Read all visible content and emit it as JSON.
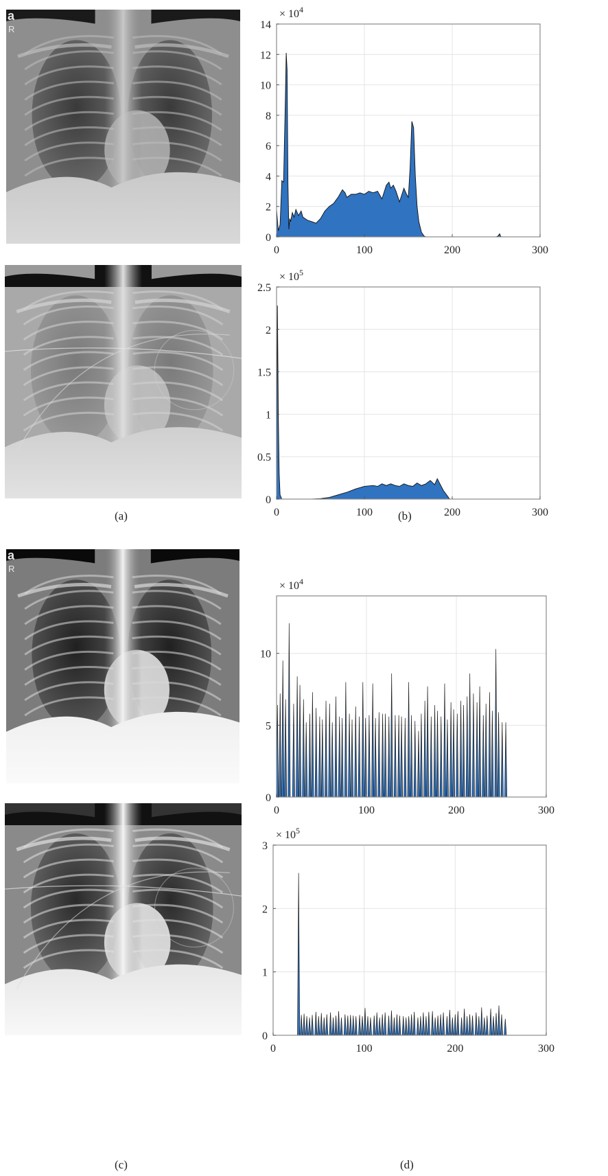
{
  "figure": {
    "captions": [
      "(a)",
      "(b)",
      "(c)",
      "(d)"
    ],
    "xray_images": [
      {
        "name": "xray-original-1",
        "corner_letter": "a",
        "corner_sub": "R"
      },
      {
        "name": "xray-original-2",
        "corner_letter": "",
        "corner_sub": ""
      },
      {
        "name": "xray-equalized-1",
        "corner_letter": "a",
        "corner_sub": "R"
      },
      {
        "name": "xray-equalized-2",
        "corner_letter": "",
        "corner_sub": ""
      }
    ],
    "colors": {
      "fill": "#2f73c1",
      "stroke": "#111111",
      "grid": "#e4e4e4",
      "axes": "#8a8a8a"
    }
  },
  "chart_data": [
    {
      "type": "area",
      "title": "",
      "xlabel": "",
      "ylabel": "",
      "multiplier": "× 10",
      "exponent": "4",
      "xlim": [
        0,
        300
      ],
      "ylim": [
        0,
        14
      ],
      "xticks": [
        0,
        100,
        200,
        300
      ],
      "yticks": [
        0,
        2,
        4,
        6,
        8,
        10,
        12,
        14
      ],
      "grid": true,
      "x": [
        0,
        2,
        4,
        6,
        8,
        10,
        11,
        12,
        13,
        14,
        15,
        16,
        18,
        20,
        22,
        25,
        28,
        30,
        35,
        40,
        45,
        50,
        55,
        60,
        65,
        70,
        75,
        78,
        80,
        85,
        90,
        95,
        100,
        105,
        110,
        115,
        120,
        125,
        128,
        130,
        133,
        136,
        140,
        145,
        148,
        150,
        152,
        154,
        156,
        158,
        160,
        162,
        165,
        168,
        170,
        200,
        250,
        252,
        254,
        255,
        256
      ],
      "y": [
        1.8,
        0.4,
        0.8,
        3.7,
        3.6,
        9.0,
        12.1,
        11.0,
        3.5,
        0.5,
        1.2,
        1.0,
        1.6,
        1.3,
        1.8,
        1.4,
        1.7,
        1.3,
        1.1,
        1.0,
        0.9,
        1.2,
        1.7,
        2.0,
        2.2,
        2.6,
        3.1,
        2.9,
        2.6,
        2.8,
        2.8,
        2.9,
        2.8,
        3.0,
        2.9,
        3.0,
        2.5,
        3.4,
        3.6,
        3.2,
        3.4,
        3.0,
        2.3,
        3.2,
        2.8,
        2.6,
        4.5,
        7.6,
        7.2,
        4.0,
        2.0,
        1.0,
        0.3,
        0.05,
        0.0,
        0.0,
        0.0,
        0.05,
        0.2,
        0.05,
        0.0
      ]
    },
    {
      "type": "area",
      "title": "",
      "xlabel": "",
      "ylabel": "",
      "multiplier": "× 10",
      "exponent": "5",
      "xlim": [
        0,
        300
      ],
      "ylim": [
        0,
        2.5
      ],
      "xticks": [
        0,
        100,
        200,
        300
      ],
      "yticks": [
        0,
        0.5,
        1,
        1.5,
        2,
        2.5
      ],
      "grid": true,
      "x": [
        0,
        1,
        2,
        3,
        4,
        6,
        10,
        20,
        30,
        40,
        50,
        60,
        70,
        80,
        90,
        100,
        110,
        115,
        120,
        125,
        130,
        135,
        140,
        145,
        150,
        155,
        160,
        165,
        170,
        175,
        180,
        183,
        185,
        190,
        195,
        197,
        200,
        250,
        256
      ],
      "y": [
        0.0,
        2.28,
        1.0,
        0.3,
        0.05,
        0.0,
        0.0,
        0.0,
        0.0,
        0.0,
        0.005,
        0.02,
        0.05,
        0.08,
        0.12,
        0.15,
        0.16,
        0.15,
        0.18,
        0.16,
        0.18,
        0.16,
        0.15,
        0.18,
        0.16,
        0.15,
        0.19,
        0.16,
        0.18,
        0.22,
        0.17,
        0.24,
        0.2,
        0.1,
        0.03,
        0.0,
        0.0,
        0.0,
        0.0
      ]
    },
    {
      "type": "bar",
      "title": "",
      "xlabel": "",
      "ylabel": "",
      "multiplier": "× 10",
      "exponent": "4",
      "xlim": [
        0,
        300
      ],
      "ylim": [
        0,
        14
      ],
      "xticks": [
        0,
        100,
        200,
        300
      ],
      "yticks": [
        0,
        5,
        10
      ],
      "grid": true,
      "x": [
        1,
        4,
        7,
        10,
        14,
        19,
        23,
        26,
        30,
        33,
        37,
        40,
        44,
        48,
        51,
        55,
        59,
        62,
        66,
        70,
        73,
        77,
        81,
        84,
        88,
        92,
        96,
        99,
        103,
        107,
        110,
        114,
        118,
        121,
        125,
        128,
        132,
        136,
        139,
        143,
        147,
        150,
        154,
        158,
        161,
        165,
        168,
        172,
        176,
        179,
        183,
        187,
        190,
        194,
        197,
        201,
        205,
        208,
        212,
        215,
        219,
        223,
        226,
        230,
        233,
        237,
        240,
        244,
        247,
        251,
        255
      ],
      "y": [
        6.4,
        7.2,
        9.5,
        6.8,
        12.1,
        6.5,
        8.4,
        7.8,
        6.8,
        5.2,
        5.8,
        7.3,
        6.2,
        5.6,
        5.4,
        6.7,
        6.5,
        5.2,
        7.0,
        5.6,
        5.5,
        8.0,
        5.8,
        5.4,
        6.3,
        5.6,
        8.0,
        5.5,
        5.7,
        7.9,
        5.5,
        5.9,
        5.8,
        5.8,
        5.6,
        8.6,
        5.7,
        5.7,
        5.6,
        5.5,
        8.0,
        5.7,
        5.3,
        4.6,
        5.8,
        6.7,
        7.7,
        5.6,
        6.4,
        6.0,
        5.6,
        7.9,
        5.4,
        6.6,
        6.1,
        5.8,
        6.7,
        6.4,
        7.0,
        8.6,
        7.2,
        6.6,
        7.7,
        5.7,
        6.5,
        7.3,
        6.0,
        10.3,
        5.9,
        5.2,
        5.2
      ]
    },
    {
      "type": "bar",
      "title": "",
      "xlabel": "",
      "ylabel": "",
      "multiplier": "× 10",
      "exponent": "5",
      "xlim": [
        0,
        300
      ],
      "ylim": [
        0,
        3
      ],
      "xticks": [
        0,
        100,
        200,
        300
      ],
      "yticks": [
        0,
        1,
        2,
        3
      ],
      "grid": true,
      "x": [
        28,
        31,
        34,
        37,
        40,
        43,
        47,
        50,
        53,
        56,
        59,
        63,
        66,
        69,
        72,
        75,
        79,
        82,
        85,
        88,
        91,
        95,
        98,
        101,
        104,
        107,
        111,
        114,
        117,
        120,
        123,
        127,
        130,
        133,
        136,
        139,
        143,
        146,
        149,
        152,
        155,
        159,
        162,
        165,
        168,
        171,
        175,
        178,
        181,
        184,
        187,
        191,
        194,
        197,
        200,
        203,
        207,
        210,
        213,
        216,
        219,
        223,
        226,
        229,
        232,
        235,
        239,
        242,
        245,
        248,
        251,
        255
      ],
      "y": [
        2.56,
        0.32,
        0.34,
        0.3,
        0.28,
        0.32,
        0.37,
        0.3,
        0.35,
        0.28,
        0.33,
        0.36,
        0.28,
        0.31,
        0.38,
        0.28,
        0.33,
        0.31,
        0.32,
        0.31,
        0.3,
        0.32,
        0.3,
        0.43,
        0.3,
        0.28,
        0.31,
        0.36,
        0.28,
        0.33,
        0.36,
        0.31,
        0.39,
        0.28,
        0.33,
        0.31,
        0.3,
        0.28,
        0.3,
        0.33,
        0.37,
        0.28,
        0.3,
        0.36,
        0.3,
        0.37,
        0.38,
        0.28,
        0.31,
        0.33,
        0.36,
        0.3,
        0.4,
        0.28,
        0.33,
        0.38,
        0.28,
        0.42,
        0.3,
        0.33,
        0.31,
        0.36,
        0.3,
        0.44,
        0.28,
        0.31,
        0.42,
        0.3,
        0.35,
        0.47,
        0.33,
        0.26
      ]
    }
  ]
}
